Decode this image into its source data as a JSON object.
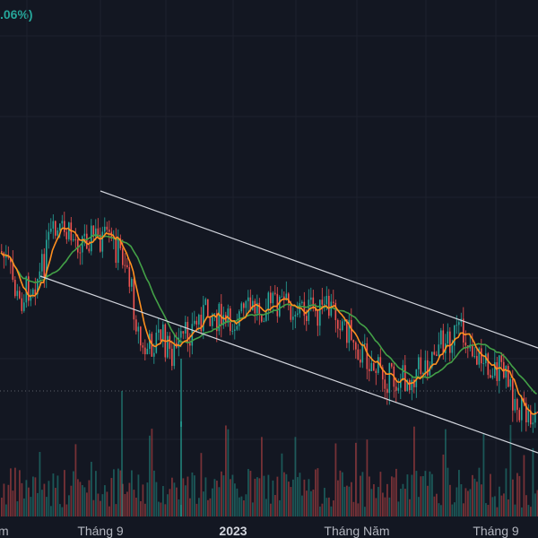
{
  "header": {
    "change_text": ".06%)"
  },
  "colors": {
    "background": "#131722",
    "grid": "#1e222d",
    "up": "#26a69a",
    "down": "#ef5350",
    "ma_fast": "#ff8f1f",
    "ma_slow": "#43a047",
    "channel": "#d1d4dc",
    "axis_text": "#b2b5be"
  },
  "chart_data": {
    "type": "candlestick",
    "x_ticks": [
      "Tháng 9",
      "2023",
      "Tháng Năm",
      "Tháng 9"
    ],
    "x_tick_bold": [
      false,
      true,
      false,
      false
    ],
    "left_edge_label": "m",
    "series": [
      "MA fast",
      "MA slow",
      "Price channel",
      "Volume"
    ],
    "grid": true
  }
}
